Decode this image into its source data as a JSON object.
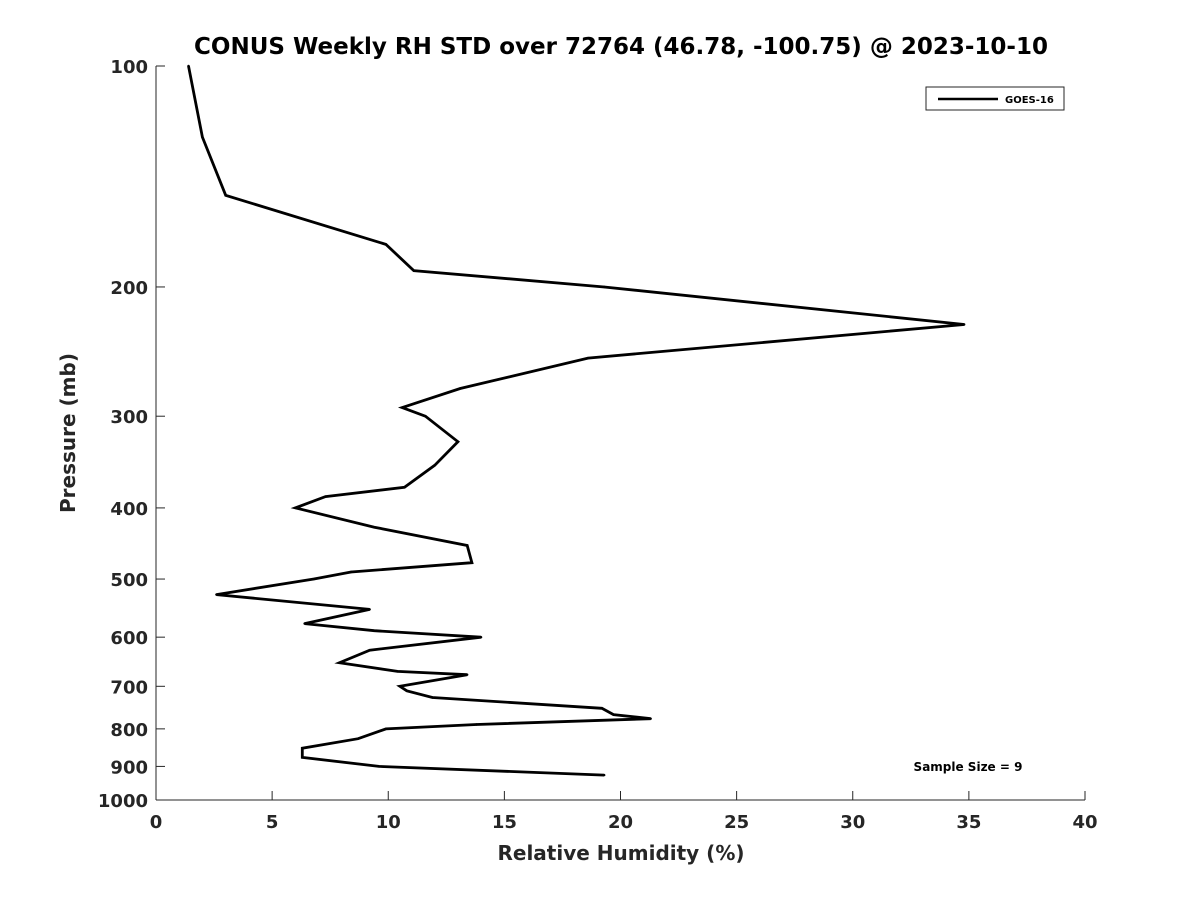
{
  "chart_data": {
    "type": "line",
    "title": "CONUS Weekly RH STD over 72764 (46.78, -100.75) @ 2023-10-10",
    "xlabel": "Relative Humidity (%)",
    "ylabel": "Pressure (mb)",
    "xlim": [
      0,
      40
    ],
    "ylim": [
      1000,
      100
    ],
    "yscale": "log",
    "y_reversed": true,
    "grid": false,
    "legend_position": "top-right",
    "xticks": [
      0,
      5,
      10,
      15,
      20,
      25,
      30,
      35,
      40
    ],
    "xtick_labels": [
      "0",
      "5",
      "10",
      "15",
      "20",
      "25",
      "30",
      "35",
      "40"
    ],
    "yticks": [
      100,
      200,
      300,
      400,
      500,
      600,
      700,
      800,
      900,
      1000
    ],
    "ytick_labels": [
      "100",
      "200",
      "300",
      "400",
      "500",
      "600",
      "700",
      "800",
      "900",
      "1000"
    ],
    "series": [
      {
        "name": "GOES-16",
        "color": "#000000",
        "points": [
          [
            1.4,
            100
          ],
          [
            2.0,
            125
          ],
          [
            3.0,
            150
          ],
          [
            9.9,
            175
          ],
          [
            11.1,
            190
          ],
          [
            19.3,
            200
          ],
          [
            34.8,
            225
          ],
          [
            18.6,
            250
          ],
          [
            13.1,
            275
          ],
          [
            10.6,
            292
          ],
          [
            11.6,
            300
          ],
          [
            13.0,
            325
          ],
          [
            12.0,
            350
          ],
          [
            10.7,
            375
          ],
          [
            7.3,
            386
          ],
          [
            6.0,
            400
          ],
          [
            9.4,
            425
          ],
          [
            13.4,
            450
          ],
          [
            13.6,
            475
          ],
          [
            8.4,
            489
          ],
          [
            6.8,
            500
          ],
          [
            2.6,
            525
          ],
          [
            9.2,
            550
          ],
          [
            6.4,
            575
          ],
          [
            9.4,
            588
          ],
          [
            14.0,
            600
          ],
          [
            9.2,
            625
          ],
          [
            7.9,
            650
          ],
          [
            10.4,
            668
          ],
          [
            13.4,
            675
          ],
          [
            10.5,
            700
          ],
          [
            10.8,
            710
          ],
          [
            11.9,
            725
          ],
          [
            19.2,
            750
          ],
          [
            19.7,
            765
          ],
          [
            21.3,
            775
          ],
          [
            13.8,
            789
          ],
          [
            9.9,
            800
          ],
          [
            8.7,
            825
          ],
          [
            6.3,
            850
          ],
          [
            6.3,
            875
          ],
          [
            9.6,
            900
          ],
          [
            19.3,
            925
          ]
        ]
      }
    ],
    "annotations": [
      {
        "text": "Sample Size = 9",
        "position": "bottom-right"
      }
    ]
  }
}
